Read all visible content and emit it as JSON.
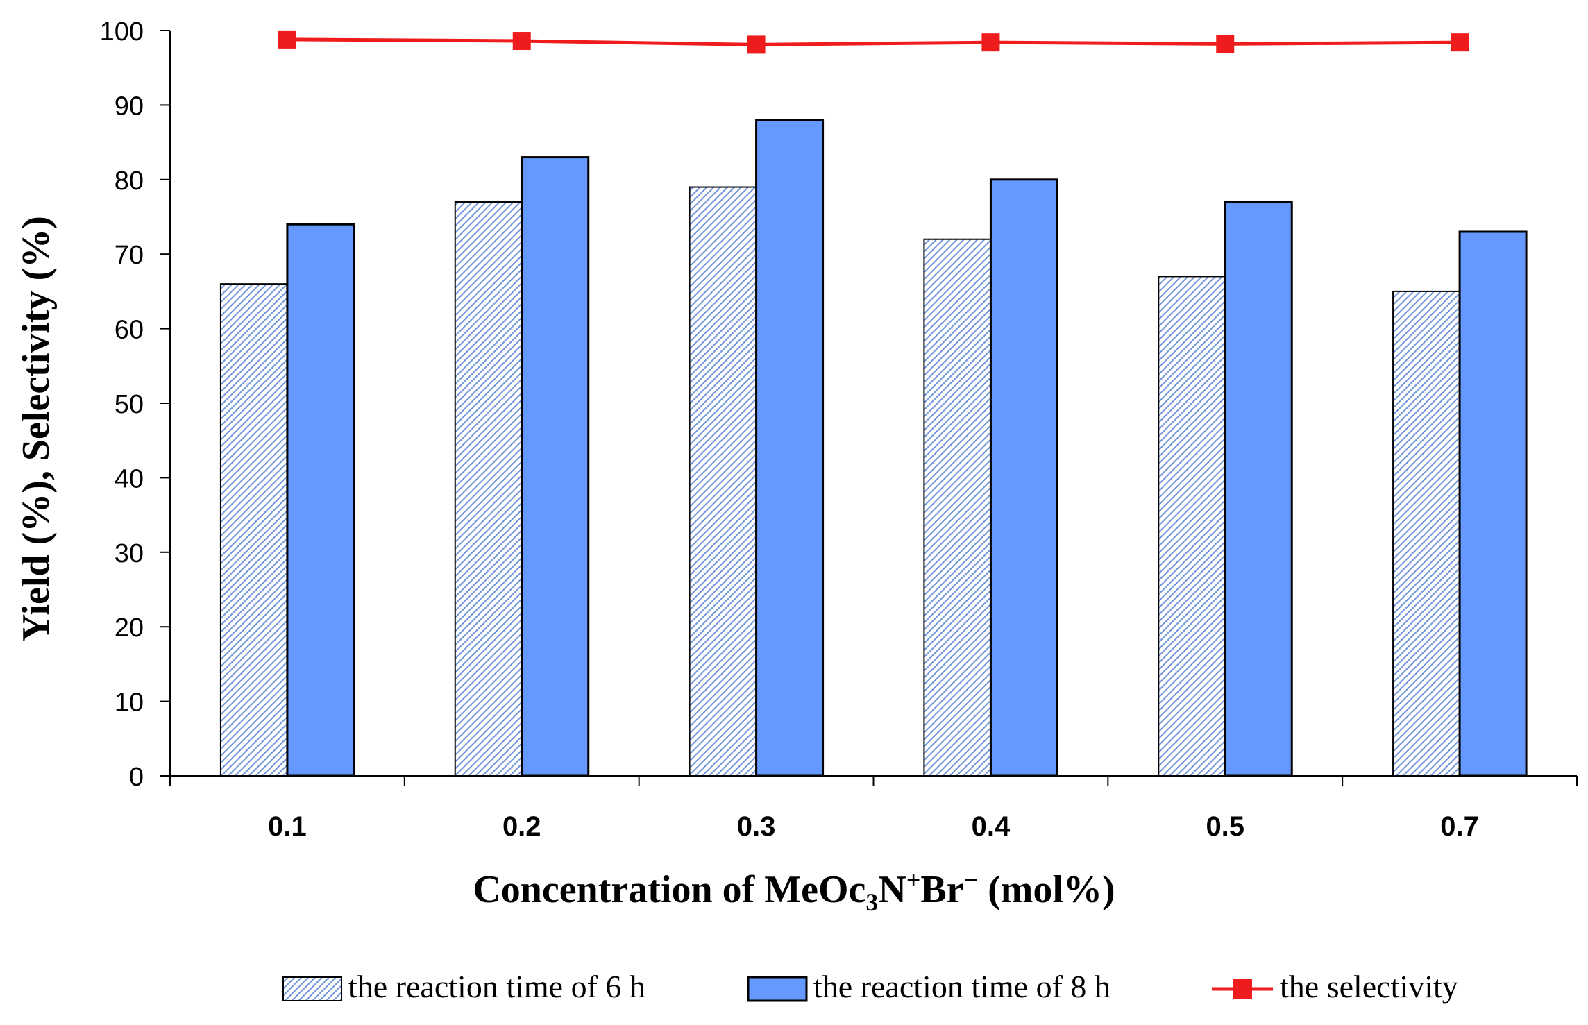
{
  "chart_data": {
    "type": "bar",
    "title": "",
    "xlabel": {
      "prefix": "Concentration of MeOc",
      "sub": "3",
      "mid1": "N",
      "sup1": "+",
      "mid2": "Br",
      "sup2": "−",
      "suffix": " (mol%)"
    },
    "ylabel": "Yield (%), Selectivity (%)",
    "ylim": [
      0,
      100
    ],
    "yticks": [
      0,
      10,
      20,
      30,
      40,
      50,
      60,
      70,
      80,
      90,
      100
    ],
    "grid": false,
    "categories": [
      "0.1",
      "0.2",
      "0.3",
      "0.4",
      "0.5",
      "0.7"
    ],
    "series": [
      {
        "name": "the reaction time of 6 h",
        "kind": "bar",
        "pattern": "hatched",
        "color": "#6699ff",
        "values": [
          66,
          77,
          79,
          72,
          67,
          65
        ]
      },
      {
        "name": "the reaction time of 8 h",
        "kind": "bar",
        "pattern": "solid",
        "color": "#6699ff",
        "values": [
          74,
          83,
          88,
          80,
          77,
          73
        ]
      },
      {
        "name": "the selectivity",
        "kind": "line",
        "marker": "square",
        "color": "#ee1c1c",
        "values": [
          98.8,
          98.6,
          98.1,
          98.4,
          98.2,
          98.4
        ]
      }
    ],
    "legend": {
      "position": "bottom-center"
    }
  }
}
